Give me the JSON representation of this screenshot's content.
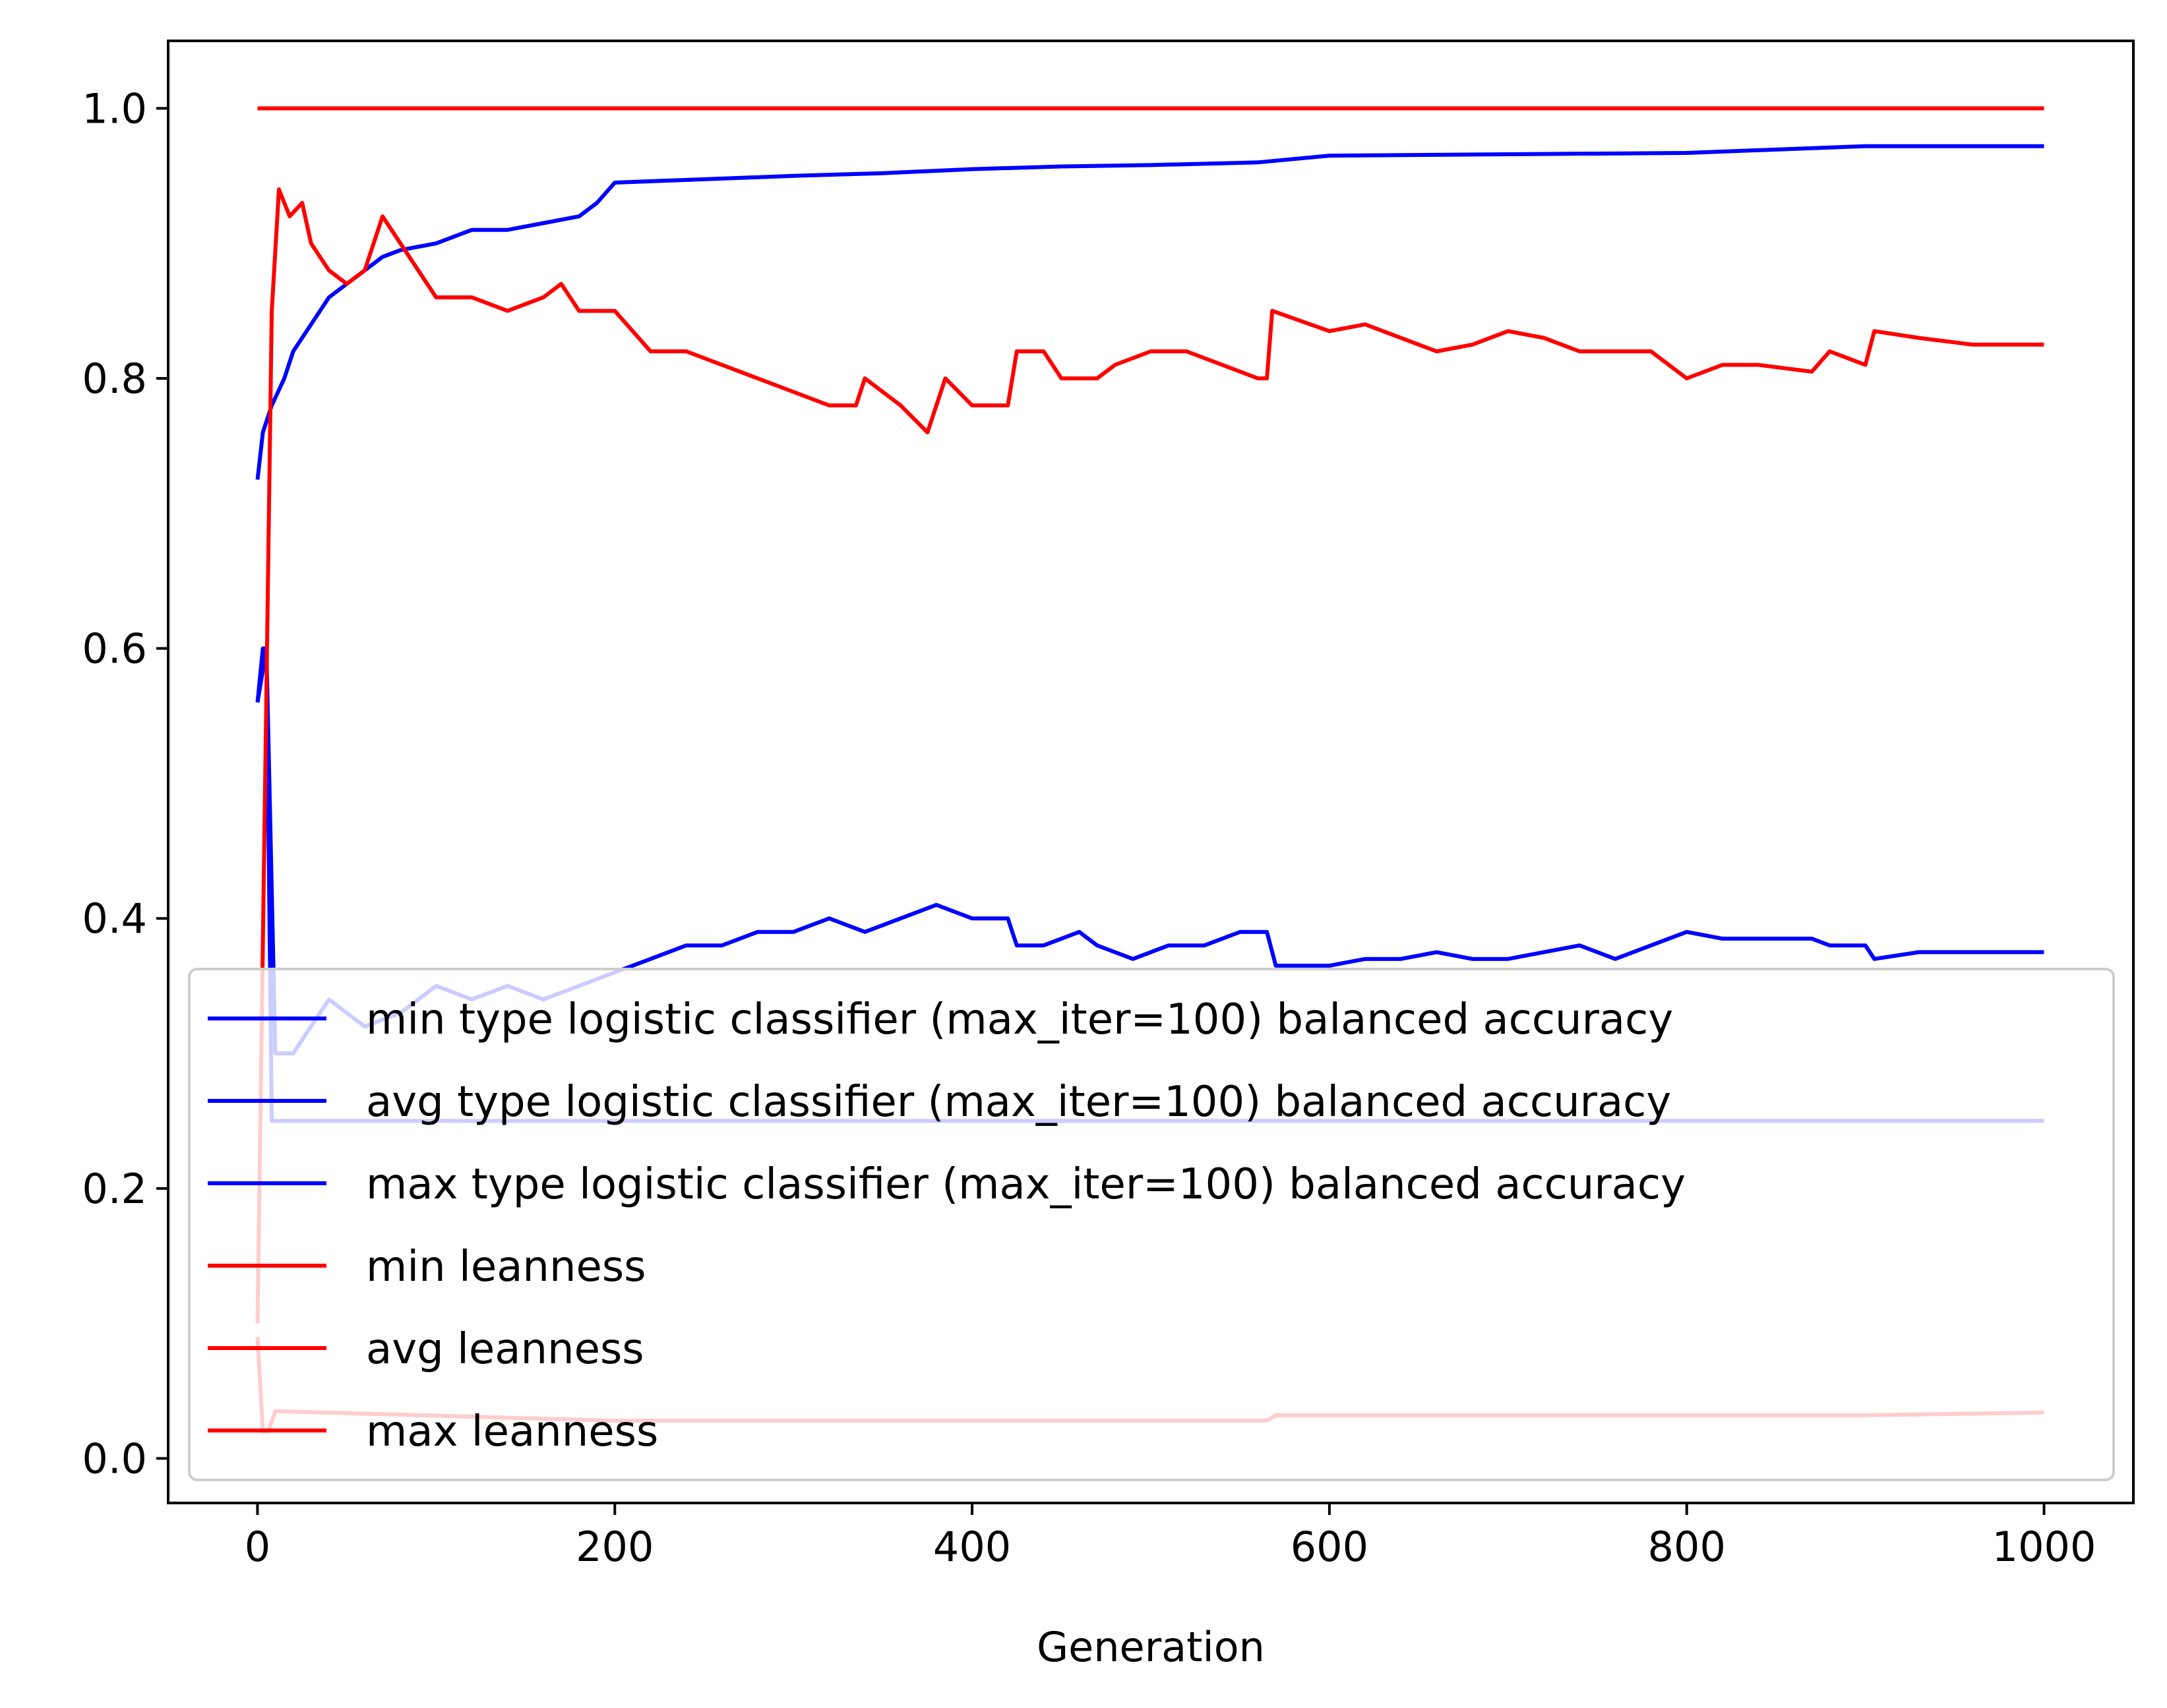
{
  "chart_data": {
    "type": "line",
    "title": "",
    "xlabel": "Generation",
    "ylabel": "",
    "xlim": [
      -50,
      1050
    ],
    "ylim": [
      -0.033,
      1.05
    ],
    "x_ticks": [
      0,
      200,
      400,
      600,
      800,
      1000
    ],
    "x_tick_labels": [
      "0",
      "200",
      "400",
      "600",
      "800",
      "1000"
    ],
    "y_ticks": [
      0.0,
      0.2,
      0.4,
      0.6,
      0.8,
      1.0
    ],
    "y_tick_labels": [
      "0.0",
      "0.2",
      "0.4",
      "0.6",
      "0.8",
      "1.0"
    ],
    "grid": false,
    "legend_position": "lower-right",
    "series": [
      {
        "name": "min type logistic classifier (max_iter=100) balanced accuracy",
        "color": "#0000ff",
        "points": [
          [
            0,
            0.56
          ],
          [
            3,
            0.6
          ],
          [
            5,
            0.6
          ],
          [
            8,
            0.25
          ],
          [
            1000,
            0.25
          ]
        ]
      },
      {
        "name": "avg type logistic classifier (max_iter=100) balanced accuracy",
        "color": "#0000ff",
        "points": [
          [
            0,
            0.56
          ],
          [
            5,
            0.6
          ],
          [
            10,
            0.3
          ],
          [
            20,
            0.3
          ],
          [
            40,
            0.34
          ],
          [
            60,
            0.32
          ],
          [
            80,
            0.33
          ],
          [
            100,
            0.35
          ],
          [
            120,
            0.34
          ],
          [
            140,
            0.35
          ],
          [
            160,
            0.34
          ],
          [
            180,
            0.35
          ],
          [
            200,
            0.36
          ],
          [
            220,
            0.37
          ],
          [
            240,
            0.38
          ],
          [
            260,
            0.38
          ],
          [
            280,
            0.39
          ],
          [
            300,
            0.39
          ],
          [
            320,
            0.4
          ],
          [
            340,
            0.39
          ],
          [
            360,
            0.4
          ],
          [
            380,
            0.41
          ],
          [
            400,
            0.4
          ],
          [
            420,
            0.4
          ],
          [
            425,
            0.38
          ],
          [
            440,
            0.38
          ],
          [
            460,
            0.39
          ],
          [
            470,
            0.38
          ],
          [
            490,
            0.37
          ],
          [
            510,
            0.38
          ],
          [
            530,
            0.38
          ],
          [
            550,
            0.39
          ],
          [
            565,
            0.39
          ],
          [
            570,
            0.365
          ],
          [
            600,
            0.365
          ],
          [
            620,
            0.37
          ],
          [
            640,
            0.37
          ],
          [
            660,
            0.375
          ],
          [
            680,
            0.37
          ],
          [
            700,
            0.37
          ],
          [
            720,
            0.375
          ],
          [
            740,
            0.38
          ],
          [
            760,
            0.37
          ],
          [
            780,
            0.38
          ],
          [
            800,
            0.39
          ],
          [
            820,
            0.385
          ],
          [
            840,
            0.385
          ],
          [
            870,
            0.385
          ],
          [
            880,
            0.38
          ],
          [
            900,
            0.38
          ],
          [
            905,
            0.37
          ],
          [
            930,
            0.375
          ],
          [
            960,
            0.375
          ],
          [
            1000,
            0.375
          ]
        ]
      },
      {
        "name": "max type logistic classifier (max_iter=100) balanced accuracy",
        "color": "#0000ff",
        "points": [
          [
            0,
            0.725
          ],
          [
            3,
            0.76
          ],
          [
            8,
            0.78
          ],
          [
            15,
            0.8
          ],
          [
            20,
            0.82
          ],
          [
            30,
            0.84
          ],
          [
            40,
            0.86
          ],
          [
            50,
            0.87
          ],
          [
            60,
            0.88
          ],
          [
            70,
            0.89
          ],
          [
            80,
            0.895
          ],
          [
            100,
            0.9
          ],
          [
            120,
            0.91
          ],
          [
            140,
            0.91
          ],
          [
            160,
            0.915
          ],
          [
            180,
            0.92
          ],
          [
            190,
            0.93
          ],
          [
            200,
            0.945
          ],
          [
            300,
            0.95
          ],
          [
            350,
            0.952
          ],
          [
            400,
            0.955
          ],
          [
            450,
            0.957
          ],
          [
            500,
            0.958
          ],
          [
            560,
            0.96
          ],
          [
            600,
            0.965
          ],
          [
            700,
            0.966
          ],
          [
            800,
            0.967
          ],
          [
            900,
            0.972
          ],
          [
            1000,
            0.972
          ]
        ]
      },
      {
        "name": "min leanness",
        "color": "#ff0000",
        "points": [
          [
            0,
            0.09
          ],
          [
            3,
            0.02
          ],
          [
            6,
            0.02
          ],
          [
            10,
            0.035
          ],
          [
            200,
            0.028
          ],
          [
            500,
            0.028
          ],
          [
            565,
            0.028
          ],
          [
            570,
            0.032
          ],
          [
            900,
            0.032
          ],
          [
            1000,
            0.034
          ]
        ]
      },
      {
        "name": "avg leanness",
        "color": "#ff0000",
        "points": [
          [
            0,
            0.1
          ],
          [
            8,
            0.85
          ],
          [
            12,
            0.94
          ],
          [
            18,
            0.92
          ],
          [
            25,
            0.93
          ],
          [
            30,
            0.9
          ],
          [
            40,
            0.88
          ],
          [
            50,
            0.87
          ],
          [
            60,
            0.88
          ],
          [
            70,
            0.92
          ],
          [
            80,
            0.9
          ],
          [
            90,
            0.88
          ],
          [
            100,
            0.86
          ],
          [
            120,
            0.86
          ],
          [
            140,
            0.85
          ],
          [
            160,
            0.86
          ],
          [
            170,
            0.87
          ],
          [
            180,
            0.85
          ],
          [
            200,
            0.85
          ],
          [
            220,
            0.82
          ],
          [
            240,
            0.82
          ],
          [
            260,
            0.81
          ],
          [
            280,
            0.8
          ],
          [
            300,
            0.79
          ],
          [
            320,
            0.78
          ],
          [
            335,
            0.78
          ],
          [
            340,
            0.8
          ],
          [
            360,
            0.78
          ],
          [
            375,
            0.76
          ],
          [
            385,
            0.8
          ],
          [
            400,
            0.78
          ],
          [
            420,
            0.78
          ],
          [
            425,
            0.82
          ],
          [
            440,
            0.82
          ],
          [
            450,
            0.8
          ],
          [
            470,
            0.8
          ],
          [
            480,
            0.81
          ],
          [
            500,
            0.82
          ],
          [
            520,
            0.82
          ],
          [
            540,
            0.81
          ],
          [
            560,
            0.8
          ],
          [
            565,
            0.8
          ],
          [
            568,
            0.85
          ],
          [
            600,
            0.835
          ],
          [
            620,
            0.84
          ],
          [
            640,
            0.83
          ],
          [
            660,
            0.82
          ],
          [
            680,
            0.825
          ],
          [
            700,
            0.835
          ],
          [
            720,
            0.83
          ],
          [
            740,
            0.82
          ],
          [
            760,
            0.82
          ],
          [
            780,
            0.82
          ],
          [
            800,
            0.8
          ],
          [
            820,
            0.81
          ],
          [
            840,
            0.81
          ],
          [
            870,
            0.805
          ],
          [
            880,
            0.82
          ],
          [
            900,
            0.81
          ],
          [
            905,
            0.835
          ],
          [
            930,
            0.83
          ],
          [
            960,
            0.825
          ],
          [
            1000,
            0.825
          ]
        ]
      },
      {
        "name": "max leanness",
        "color": "#ff0000",
        "points": [
          [
            0,
            1.0
          ],
          [
            1000,
            1.0
          ]
        ]
      }
    ]
  }
}
